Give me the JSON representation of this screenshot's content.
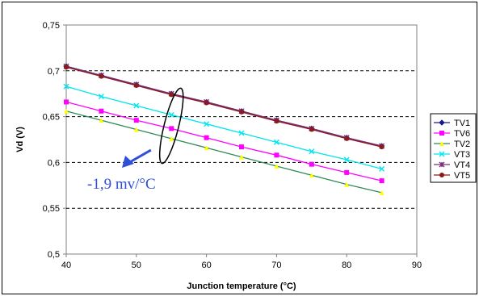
{
  "chart_data": {
    "type": "line",
    "title": "",
    "xlabel": "Junction temperature (°C)",
    "ylabel": "Vd (V)",
    "xlim": [
      40,
      90
    ],
    "ylim": [
      0.5,
      0.75
    ],
    "x_ticks": [
      "40",
      "50",
      "60",
      "70",
      "80",
      "90"
    ],
    "y_ticks": [
      "0,5",
      "0,55",
      "0,6",
      "0,65",
      "0,7",
      "0,75"
    ],
    "grid": "horizontal dashed",
    "legend_position": "right",
    "x": [
      40,
      45,
      50,
      55,
      60,
      65,
      70,
      75,
      80,
      85
    ],
    "series": [
      {
        "name": "TV1",
        "color": "#1a1a8c",
        "marker": "diamond",
        "values": [
          0.705,
          0.695,
          0.685,
          0.675,
          0.666,
          0.656,
          0.646,
          0.637,
          0.627,
          0.618
        ]
      },
      {
        "name": "TV6",
        "color": "#ff00ff",
        "marker": "square",
        "values": [
          0.666,
          0.656,
          0.646,
          0.637,
          0.627,
          0.617,
          0.608,
          0.598,
          0.589,
          0.58
        ]
      },
      {
        "name": "TV2",
        "color": "#ffff00",
        "line_color": "#2e8b57",
        "marker": "triangle",
        "values": [
          0.656,
          0.646,
          0.636,
          0.626,
          0.616,
          0.606,
          0.596,
          0.586,
          0.576,
          0.567
        ]
      },
      {
        "name": "VT3",
        "color": "#00e5ee",
        "marker": "x",
        "values": [
          0.683,
          0.672,
          0.662,
          0.652,
          0.642,
          0.632,
          0.622,
          0.612,
          0.603,
          0.593
        ]
      },
      {
        "name": "VT4",
        "color": "#7b2f7b",
        "marker": "star",
        "values": [
          0.705,
          0.695,
          0.685,
          0.675,
          0.666,
          0.656,
          0.646,
          0.637,
          0.627,
          0.618
        ]
      },
      {
        "name": "VT5",
        "color": "#8b1a1a",
        "marker": "circle",
        "values": [
          0.704,
          0.694,
          0.684,
          0.674,
          0.665,
          0.655,
          0.645,
          0.636,
          0.626,
          0.617
        ]
      }
    ],
    "annotations": [
      {
        "text": "-1,9 mv/°C",
        "color": "#2f4fd8",
        "ellipse_center": [
          55,
          0.64
        ],
        "arrow_to": [
          53,
          0.61
        ]
      }
    ]
  }
}
